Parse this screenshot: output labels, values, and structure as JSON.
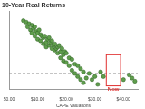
{
  "chart_data": {
    "type": "scatter",
    "title": "10-Year Real Returns",
    "x_label": "CAPE Valuations",
    "x": [
      5,
      6,
      6.5,
      7,
      7.5,
      8,
      8,
      8.5,
      9,
      9,
      9.5,
      10,
      10,
      10.5,
      11,
      11,
      11.5,
      12,
      12,
      12.5,
      13,
      13,
      13.5,
      14,
      14,
      14.5,
      15,
      15,
      15.5,
      16,
      16,
      16.5,
      17,
      17,
      17.5,
      18,
      18,
      18.5,
      19,
      19,
      19.5,
      20,
      20,
      21,
      21,
      22,
      22,
      23,
      23,
      24,
      24,
      25,
      25,
      26,
      26,
      27,
      28,
      29,
      30,
      31,
      32,
      33,
      40,
      42,
      43,
      44
    ],
    "values": [
      17,
      16.5,
      15,
      16,
      14,
      15.5,
      13,
      14.5,
      12,
      15,
      13.5,
      13,
      11,
      14,
      12.5,
      10.5,
      12,
      11.5,
      9.5,
      12,
      10,
      8.5,
      11,
      9,
      11.5,
      10,
      8,
      10.5,
      9,
      7.5,
      9.5,
      8,
      8.5,
      6.5,
      9,
      7,
      5,
      8,
      6,
      4,
      7,
      6.5,
      3.5,
      5,
      2.5,
      4.5,
      1,
      3,
      0,
      2.5,
      -1,
      1.5,
      -2,
      0.5,
      -3,
      -1.5,
      0,
      -2,
      -1,
      -3.5,
      0.5,
      -1,
      -2,
      -0.5,
      -1.5,
      -2.5
    ],
    "color": "#5f9e4c",
    "marker": "circle",
    "xlim": [
      0,
      45
    ],
    "xticks": [
      {
        "value": 0,
        "label": "$0.00"
      },
      {
        "value": 10,
        "label": "$10.00"
      },
      {
        "value": 20,
        "label": "$20.00"
      },
      {
        "value": 30,
        "label": "$30.00"
      },
      {
        "value": 40,
        "label": "$40.00"
      }
    ],
    "ylim": [
      -5,
      20
    ],
    "tick_labels": "x",
    "grid": false,
    "hline": {
      "value": 0,
      "line_style": "dashed",
      "color": "#888888"
    },
    "highlight": {
      "x": [
        34,
        39
      ],
      "y": [
        -4,
        6
      ],
      "color": "#e03030"
    },
    "annotations": [
      {
        "text": "Now",
        "x": 36.5,
        "y": -4,
        "color": "#e03030"
      }
    ]
  }
}
